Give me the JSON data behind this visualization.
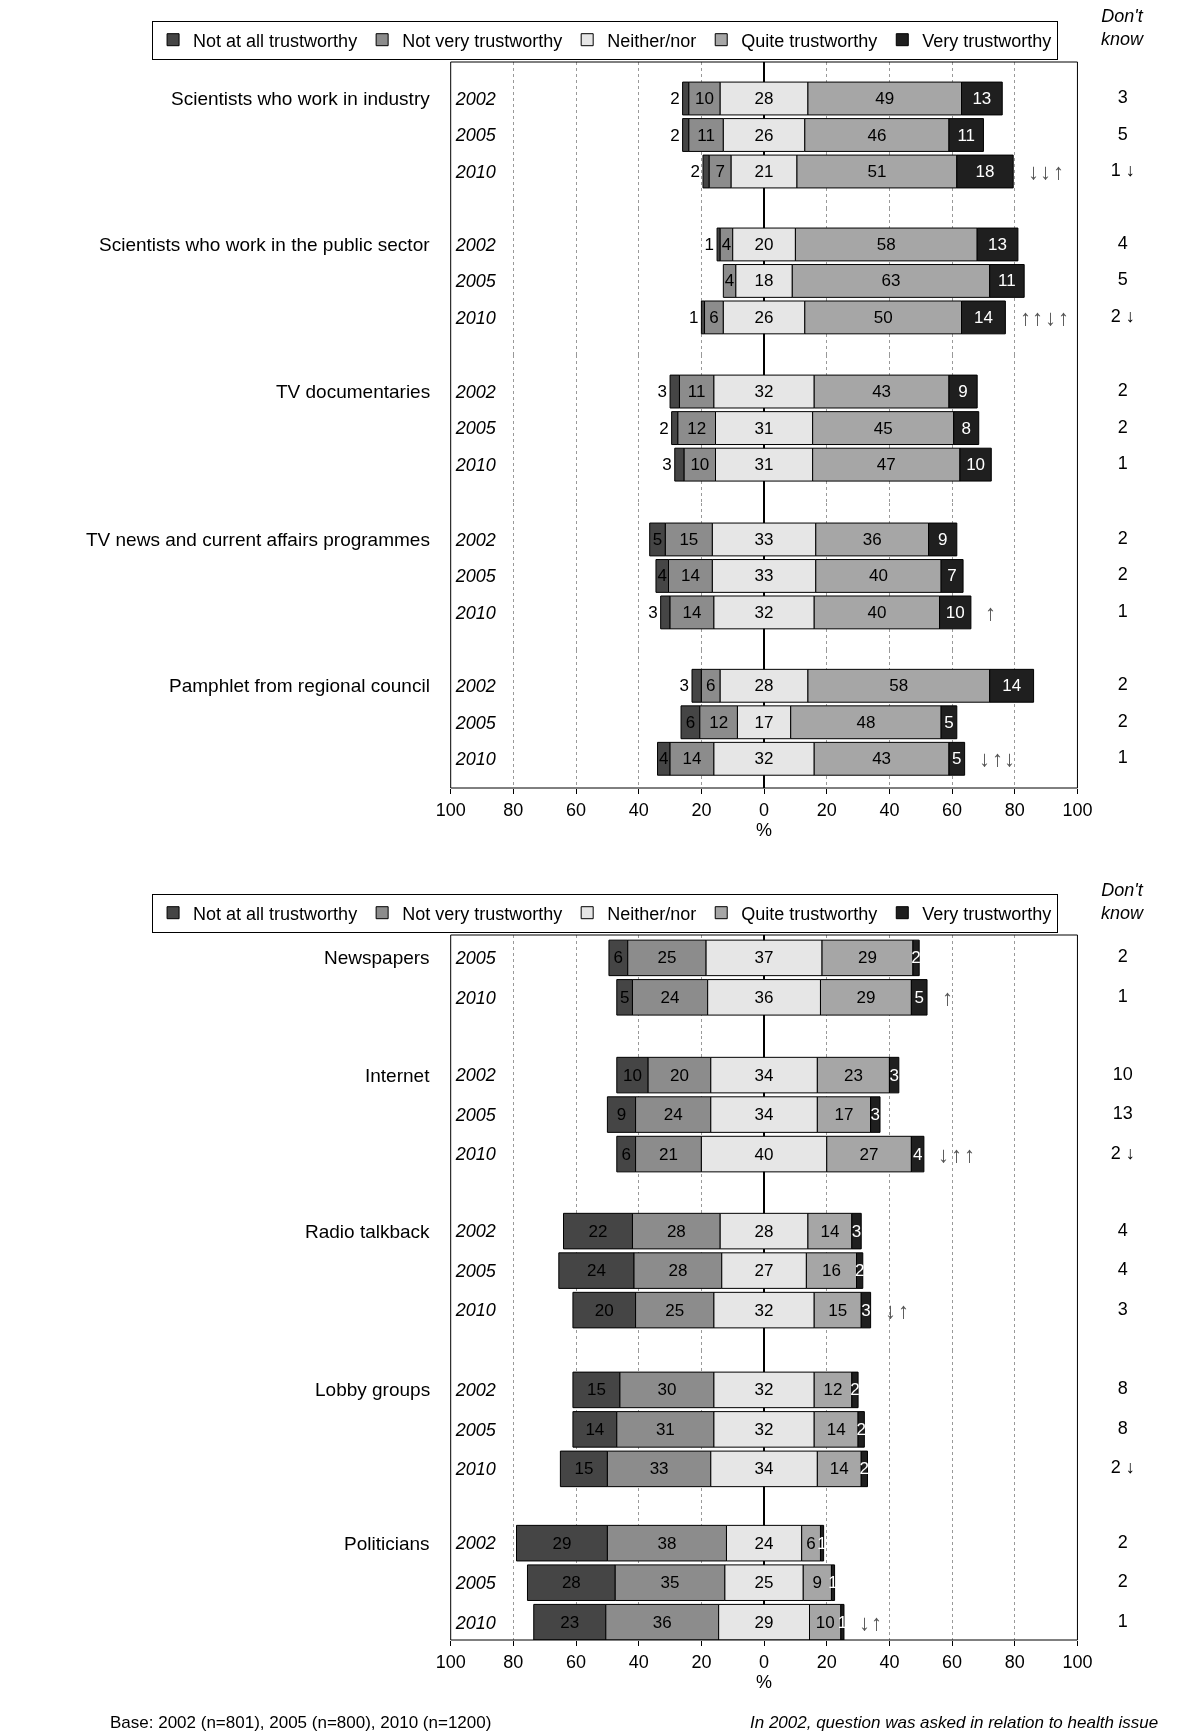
{
  "chart_data": [
    {
      "type": "bar",
      "title": "Scientists who work in industry",
      "orientation": "horizontal",
      "data_labels": true,
      "grid": "x",
      "legend": "top",
      "tick_labels": "y",
      "categories": [
        "2002",
        "2005",
        "2010"
      ],
      "xlim": [
        -100,
        100
      ],
      "xticks": [
        -100,
        -80,
        -60,
        -40,
        -20,
        0,
        20,
        40,
        60,
        80,
        100
      ],
      "series": [
        {
          "name": "Not at all trustworthy",
          "color": "#454545",
          "values": [
            2,
            2,
            2
          ],
          "base": [
            -26,
            -26,
            -19.5
          ]
        },
        {
          "name": "Not very trustworthy",
          "color": "#8c8c8c",
          "values": [
            10,
            11,
            7
          ],
          "base": [
            -24,
            -24,
            -17.5
          ]
        },
        {
          "name": "Neither/nor",
          "color": "#e6e6e6",
          "values": [
            28,
            26,
            21
          ],
          "base": [
            -14,
            -13,
            -10.5
          ]
        },
        {
          "name": "Quite trustworthy",
          "color": "#a6a6a6",
          "values": [
            49,
            46,
            51
          ],
          "base": [
            14,
            13,
            10.5
          ]
        },
        {
          "name": "Very trustworthy",
          "color": "#1f1f1f",
          "values": [
            13,
            11,
            18
          ],
          "base": [
            63,
            59,
            61.5
          ]
        }
      ],
      "annotations": [
        "↓",
        "↓",
        "↑"
      ]
    },
    {
      "type": "other",
      "title": "Don't know",
      "values": [
        3,
        5,
        1
      ],
      "value_labels": [
        "3",
        "5",
        "1 ↓"
      ]
    },
    {
      "type": "bar",
      "title": "Scientists who work in the public sector",
      "orientation": "horizontal",
      "data_labels": true,
      "grid": "x",
      "tick_labels": "y",
      "categories": [
        "2002",
        "2005",
        "2010"
      ],
      "xlim": [
        -100,
        100
      ],
      "xticks": [
        -100,
        -80,
        -60,
        -40,
        -20,
        0,
        20,
        40,
        60,
        80,
        100
      ],
      "series": [
        {
          "color": "#454545",
          "values": [
            1,
            null,
            1
          ],
          "base": [
            -15,
            null,
            -20
          ]
        },
        {
          "color": "#8c8c8c",
          "values": [
            4,
            4,
            6
          ],
          "base": [
            -14,
            -13,
            -19
          ]
        },
        {
          "color": "#e6e6e6",
          "values": [
            20,
            18,
            26
          ],
          "base": [
            -10,
            -9,
            -13
          ]
        },
        {
          "color": "#a6a6a6",
          "values": [
            58,
            63,
            50
          ],
          "base": [
            10,
            9,
            13
          ]
        },
        {
          "color": "#1f1f1f",
          "values": [
            13,
            11,
            14
          ],
          "base": [
            68,
            72,
            63
          ]
        }
      ],
      "annotations": [
        "↑",
        "↑",
        "↓",
        "↑"
      ]
    },
    {
      "type": "other",
      "values": [
        4,
        5,
        2
      ],
      "value_labels": [
        "4",
        "5",
        "2 ↓"
      ]
    },
    {
      "type": "bar",
      "title": "TV documentaries",
      "orientation": "horizontal",
      "data_labels": true,
      "grid": "x",
      "tick_labels": "y",
      "categories": [
        "2002",
        "2005",
        "2010"
      ],
      "xlim": [
        -100,
        100
      ],
      "xticks": [
        -100,
        -80,
        -60,
        -40,
        -20,
        0,
        20,
        40,
        60,
        80,
        100
      ],
      "series": [
        {
          "color": "#454545",
          "values": [
            3,
            2,
            3
          ],
          "base": [
            -30,
            -29.5,
            -28.5
          ]
        },
        {
          "color": "#8c8c8c",
          "values": [
            11,
            12,
            10
          ],
          "base": [
            -27,
            -27.5,
            -25.5
          ]
        },
        {
          "color": "#e6e6e6",
          "values": [
            32,
            31,
            31
          ],
          "base": [
            -16,
            -15.5,
            -15.5
          ]
        },
        {
          "color": "#a6a6a6",
          "values": [
            43,
            45,
            47
          ],
          "base": [
            16,
            15.5,
            15.5
          ]
        },
        {
          "color": "#1f1f1f",
          "values": [
            9,
            8,
            10
          ],
          "base": [
            59,
            60.5,
            62.5
          ]
        }
      ]
    },
    {
      "type": "other",
      "data_labels": true,
      "values": [
        2,
        2,
        1
      ]
    },
    {
      "type": "bar",
      "title": "TV news and current affairs programmes",
      "orientation": "horizontal",
      "data_labels": true,
      "grid": "x",
      "tick_labels": "y",
      "categories": [
        "2002",
        "2005",
        "2010"
      ],
      "xlim": [
        -100,
        100
      ],
      "xticks": [
        -100,
        -80,
        -60,
        -40,
        -20,
        0,
        20,
        40,
        60,
        80,
        100
      ],
      "series": [
        {
          "color": "#454545",
          "values": [
            5,
            4,
            3
          ],
          "base": [
            -36.5,
            -34.5,
            -33
          ]
        },
        {
          "color": "#8c8c8c",
          "values": [
            15,
            14,
            14
          ],
          "base": [
            -31.5,
            -30.5,
            -30
          ]
        },
        {
          "color": "#e6e6e6",
          "values": [
            33,
            33,
            32
          ],
          "base": [
            -16.5,
            -16.5,
            -16
          ]
        },
        {
          "color": "#a6a6a6",
          "values": [
            36,
            40,
            40
          ],
          "base": [
            16.5,
            16.5,
            16
          ]
        },
        {
          "color": "#1f1f1f",
          "values": [
            9,
            7,
            10
          ],
          "base": [
            52.5,
            56.5,
            56
          ]
        }
      ],
      "annotations": [
        "↑"
      ]
    },
    {
      "type": "other",
      "data_labels": true,
      "values": [
        2,
        2,
        1
      ]
    },
    {
      "type": "bar",
      "title": "Pamphlet from regional council",
      "orientation": "horizontal",
      "data_labels": true,
      "grid": "x",
      "xlabel": "%",
      "categories": [
        "2002",
        "2005",
        "2010"
      ],
      "xlim": [
        -100,
        100
      ],
      "xticks": [
        {
          "value": -100,
          "label": "100"
        },
        {
          "value": -80,
          "label": "80"
        },
        {
          "value": -60,
          "label": "60"
        },
        {
          "value": -40,
          "label": "40"
        },
        {
          "value": -20,
          "label": "20"
        },
        0,
        20,
        40,
        60,
        80,
        100
      ],
      "series": [
        {
          "color": "#454545",
          "values": [
            3,
            6,
            4
          ],
          "base": [
            -23,
            -26.5,
            -34
          ]
        },
        {
          "color": "#8c8c8c",
          "values": [
            6,
            12,
            14
          ],
          "base": [
            -20,
            -20.5,
            -30
          ]
        },
        {
          "color": "#e6e6e6",
          "values": [
            28,
            17,
            32
          ],
          "base": [
            -14,
            -8.5,
            -16
          ]
        },
        {
          "color": "#a6a6a6",
          "values": [
            58,
            48,
            43
          ],
          "base": [
            14,
            8.5,
            16
          ]
        },
        {
          "color": "#1f1f1f",
          "values": [
            14,
            5,
            5
          ],
          "base": [
            72,
            56.5,
            59
          ]
        }
      ],
      "annotations": [
        "↓",
        "↑",
        "↓"
      ]
    },
    {
      "type": "other",
      "data_labels": true,
      "values": [
        2,
        2,
        1
      ]
    },
    {
      "type": "bar",
      "title": "Newspapers",
      "orientation": "horizontal",
      "data_labels": true,
      "grid": "x",
      "legend": "top",
      "tick_labels": "y",
      "categories": [
        "2005",
        "2010"
      ],
      "xlim": [
        -100,
        100
      ],
      "xticks": [
        -100,
        -80,
        -60,
        -40,
        -20,
        0,
        20,
        40,
        60,
        80,
        100
      ],
      "series": [
        {
          "name": "Not at all trustworthy",
          "color": "#454545",
          "values": [
            6,
            5
          ],
          "base": [
            -49.5,
            -47
          ]
        },
        {
          "name": "Not very trustworthy",
          "color": "#8c8c8c",
          "values": [
            25,
            24
          ],
          "base": [
            -43.5,
            -42
          ]
        },
        {
          "name": "Neither/nor",
          "color": "#e6e6e6",
          "values": [
            37,
            36
          ],
          "base": [
            -18.5,
            -18
          ]
        },
        {
          "name": "Quite trustworthy",
          "color": "#a6a6a6",
          "values": [
            29,
            29
          ],
          "base": [
            18.5,
            18
          ]
        },
        {
          "name": "Very trustworthy",
          "color": "#1f1f1f",
          "values": [
            2,
            5
          ],
          "base": [
            47.5,
            47
          ]
        }
      ],
      "annotations": [
        "↑"
      ]
    },
    {
      "type": "other",
      "title": "Don't know",
      "data_labels": true,
      "values": [
        2,
        1
      ]
    },
    {
      "type": "bar",
      "title": "Internet",
      "orientation": "horizontal",
      "data_labels": true,
      "grid": "x",
      "tick_labels": "y",
      "categories": [
        "2002",
        "2005",
        "2010"
      ],
      "xlim": [
        -100,
        100
      ],
      "xticks": [
        -100,
        -80,
        -60,
        -40,
        -20,
        0,
        20,
        40,
        60,
        80,
        100
      ],
      "series": [
        {
          "color": "#454545",
          "values": [
            10,
            9,
            6
          ],
          "base": [
            -47,
            -50,
            -47
          ]
        },
        {
          "color": "#8c8c8c",
          "values": [
            20,
            24,
            21
          ],
          "base": [
            -37,
            -41,
            -41
          ]
        },
        {
          "color": "#e6e6e6",
          "values": [
            34,
            34,
            40
          ],
          "base": [
            -17,
            -17,
            -20
          ]
        },
        {
          "color": "#a6a6a6",
          "values": [
            23,
            17,
            27
          ],
          "base": [
            17,
            17,
            20
          ]
        },
        {
          "color": "#1f1f1f",
          "values": [
            3,
            3,
            4
          ],
          "base": [
            40,
            34,
            47
          ]
        }
      ],
      "annotations": [
        "↓",
        "↑",
        "↑"
      ]
    },
    {
      "type": "other",
      "values": [
        10,
        13,
        2
      ],
      "value_labels": [
        "10",
        "13",
        "2 ↓"
      ]
    },
    {
      "type": "bar",
      "title": "Radio talkback",
      "orientation": "horizontal",
      "data_labels": true,
      "grid": "x",
      "tick_labels": "y",
      "categories": [
        "2002",
        "2005",
        "2010"
      ],
      "xlim": [
        -100,
        100
      ],
      "xticks": [
        -100,
        -80,
        -60,
        -40,
        -20,
        0,
        20,
        40,
        60,
        80,
        100
      ],
      "series": [
        {
          "color": "#454545",
          "values": [
            22,
            24,
            20
          ],
          "base": [
            -64,
            -65.5,
            -61
          ]
        },
        {
          "color": "#8c8c8c",
          "values": [
            28,
            28,
            25
          ],
          "base": [
            -42,
            -41.5,
            -41
          ]
        },
        {
          "color": "#e6e6e6",
          "values": [
            28,
            27,
            32
          ],
          "base": [
            -14,
            -13.5,
            -16
          ]
        },
        {
          "color": "#a6a6a6",
          "values": [
            14,
            16,
            15
          ],
          "base": [
            14,
            13.5,
            16
          ]
        },
        {
          "color": "#1f1f1f",
          "values": [
            3,
            2,
            3
          ],
          "base": [
            28,
            29.5,
            31
          ]
        }
      ],
      "annotations": [
        "↓",
        "↑"
      ]
    },
    {
      "type": "other",
      "data_labels": true,
      "values": [
        4,
        4,
        3
      ]
    },
    {
      "type": "bar",
      "title": "Lobby groups",
      "orientation": "horizontal",
      "data_labels": true,
      "grid": "x",
      "tick_labels": "y",
      "categories": [
        "2002",
        "2005",
        "2010"
      ],
      "xlim": [
        -100,
        100
      ],
      "xticks": [
        -100,
        -80,
        -60,
        -40,
        -20,
        0,
        20,
        40,
        60,
        80,
        100
      ],
      "series": [
        {
          "color": "#454545",
          "values": [
            15,
            14,
            15
          ],
          "base": [
            -61,
            -61,
            -65
          ]
        },
        {
          "color": "#8c8c8c",
          "values": [
            30,
            31,
            33
          ],
          "base": [
            -46,
            -47,
            -50
          ]
        },
        {
          "color": "#e6e6e6",
          "values": [
            32,
            32,
            34
          ],
          "base": [
            -16,
            -16,
            -17
          ]
        },
        {
          "color": "#a6a6a6",
          "values": [
            12,
            14,
            14
          ],
          "base": [
            16,
            16,
            17
          ]
        },
        {
          "color": "#1f1f1f",
          "values": [
            2,
            2,
            2
          ],
          "base": [
            28,
            30,
            31
          ]
        }
      ]
    },
    {
      "type": "other",
      "values": [
        8,
        8,
        2
      ],
      "value_labels": [
        "8",
        "8",
        "2 ↓"
      ]
    },
    {
      "type": "bar",
      "title": "Politicians",
      "orientation": "horizontal",
      "data_labels": true,
      "grid": "x",
      "xlabel": "%",
      "categories": [
        "2002",
        "2005",
        "2010"
      ],
      "xlim": [
        -100,
        100
      ],
      "xticks": [
        {
          "value": -100,
          "label": "100"
        },
        {
          "value": -80,
          "label": "80"
        },
        {
          "value": -60,
          "label": "60"
        },
        {
          "value": -40,
          "label": "40"
        },
        {
          "value": -20,
          "label": "20"
        },
        0,
        20,
        40,
        60,
        80,
        100
      ],
      "series": [
        {
          "color": "#454545",
          "values": [
            29,
            28,
            23
          ],
          "base": [
            -79,
            -75.5,
            -73.5
          ]
        },
        {
          "color": "#8c8c8c",
          "values": [
            38,
            35,
            36
          ],
          "base": [
            -50,
            -47.5,
            -50.5
          ]
        },
        {
          "color": "#e6e6e6",
          "values": [
            24,
            25,
            29
          ],
          "base": [
            -12,
            -12.5,
            -14.5
          ]
        },
        {
          "color": "#a6a6a6",
          "values": [
            6,
            9,
            10
          ],
          "base": [
            12,
            12.5,
            14.5
          ]
        },
        {
          "color": "#1f1f1f",
          "values": [
            1,
            1,
            1
          ],
          "base": [
            18,
            21.5,
            24.5
          ]
        }
      ],
      "annotations": [
        "↓",
        "↑",
        "Base: 2002 (n=801), 2005 (n=800), 2010 (n=1200)",
        "In 2002, question was asked in relation to health issue"
      ]
    },
    {
      "type": "other",
      "data_labels": true,
      "values": [
        2,
        2,
        1
      ]
    }
  ]
}
